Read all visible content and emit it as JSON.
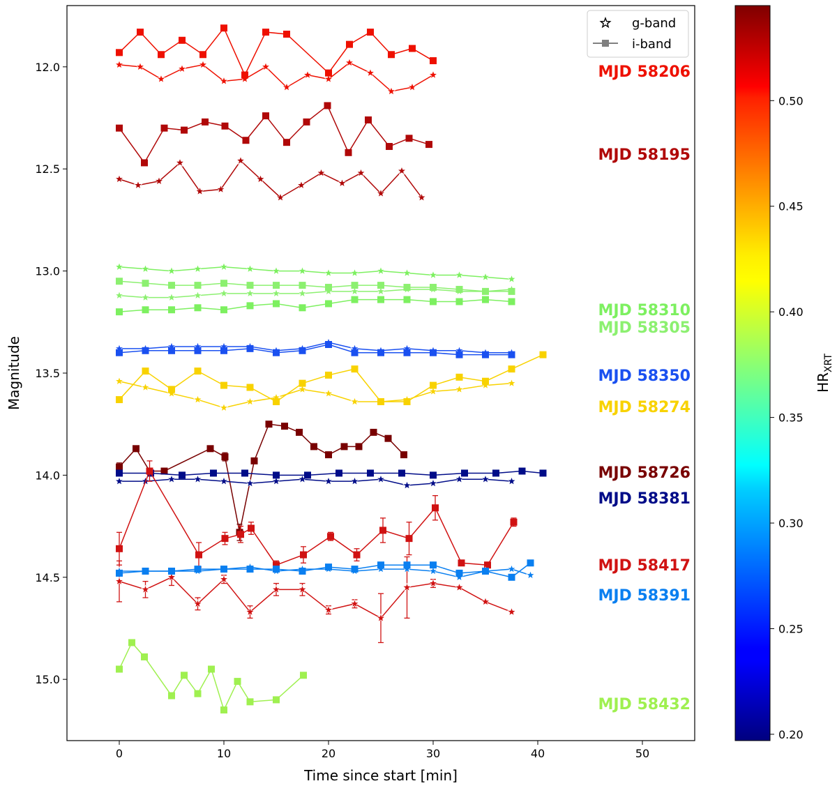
{
  "chart_data": {
    "type": "line",
    "xlabel": "Time since start [min]",
    "ylabel": "Magnitude",
    "xlim": [
      -5,
      55
    ],
    "ylim": [
      15.3,
      11.7
    ],
    "y_inverted": true,
    "xticks": [
      "0",
      "10",
      "20",
      "30",
      "40",
      "50"
    ],
    "yticks": [
      "12.0",
      "12.5",
      "13.0",
      "13.5",
      "14.0",
      "14.5",
      "15.0"
    ],
    "legend": {
      "position": "top-right",
      "entries": [
        {
          "label": "g-band",
          "marker": "star"
        },
        {
          "label": "i-band",
          "marker": "square"
        }
      ]
    },
    "colorbar": {
      "label": "HR",
      "label_sub": "XRT",
      "range": [
        0.197,
        0.545
      ],
      "ticks": [
        "0.20",
        "0.25",
        "0.30",
        "0.35",
        "0.40",
        "0.45",
        "0.50"
      ],
      "colormap": "jet"
    },
    "epochs": [
      {
        "label": "MJD 58206",
        "color": "#ee1000",
        "i_band": {
          "x": [
            0,
            2,
            4,
            6,
            8,
            10,
            12,
            14,
            16,
            20,
            22,
            24,
            26,
            28,
            30
          ],
          "y": [
            11.93,
            11.83,
            11.94,
            11.87,
            11.94,
            11.81,
            12.04,
            11.83,
            11.84,
            12.03,
            11.89,
            11.83,
            11.94,
            11.91,
            11.97
          ]
        },
        "g_band": {
          "x": [
            0,
            2,
            4,
            6,
            8,
            10,
            12,
            14,
            16,
            18,
            20,
            22,
            24,
            26,
            28,
            30
          ],
          "y": [
            11.99,
            12.0,
            12.06,
            12.01,
            11.99,
            12.07,
            12.06,
            12.0,
            12.1,
            12.04,
            12.06,
            11.98,
            12.03,
            12.12,
            12.1,
            12.04
          ]
        }
      },
      {
        "label": "MJD 58195",
        "color": "#b00808",
        "i_band": {
          "x": [
            0,
            2.4,
            4.3,
            6.2,
            8.2,
            10.1,
            12.1,
            14,
            16,
            17.9,
            19.9,
            21.9,
            23.8,
            25.8,
            27.7,
            29.6
          ],
          "y": [
            12.3,
            12.47,
            12.3,
            12.31,
            12.27,
            12.29,
            12.36,
            12.24,
            12.37,
            12.27,
            12.19,
            12.42,
            12.26,
            12.39,
            12.35,
            12.38
          ]
        },
        "g_band": {
          "x": [
            0,
            1.8,
            3.8,
            5.8,
            7.7,
            9.7,
            11.6,
            13.5,
            15.4,
            17.4,
            19.3,
            21.3,
            23.1,
            25,
            27,
            28.9
          ],
          "y": [
            12.55,
            12.58,
            12.56,
            12.47,
            12.61,
            12.6,
            12.46,
            12.55,
            12.64,
            12.58,
            12.52,
            12.57,
            12.52,
            12.62,
            12.51,
            12.64
          ]
        }
      },
      {
        "label": "MJD 58310",
        "color": "#7df060",
        "i_band": {
          "x": [
            0,
            2.5,
            5,
            7.5,
            10,
            12.5,
            15,
            17.5,
            20,
            22.5,
            25,
            27.5,
            30,
            32.5,
            35,
            37.5
          ],
          "y": [
            13.2,
            13.19,
            13.19,
            13.18,
            13.19,
            13.17,
            13.16,
            13.18,
            13.16,
            13.14,
            13.14,
            13.14,
            13.15,
            13.15,
            13.14,
            13.15
          ]
        },
        "g_band": {
          "x": [
            0,
            2.5,
            5,
            7.5,
            10,
            12.5,
            15,
            17.5,
            20,
            22.5,
            25,
            27.5,
            30,
            32.5,
            35,
            37.5
          ],
          "y": [
            12.98,
            12.99,
            13.0,
            12.99,
            12.98,
            12.99,
            13.0,
            13.0,
            13.01,
            13.01,
            13.0,
            13.01,
            13.02,
            13.02,
            13.03,
            13.04
          ]
        }
      },
      {
        "label": "MJD 58305",
        "color": "#8cf070",
        "i_band": {
          "x": [
            0,
            2.5,
            5,
            7.5,
            10,
            12.5,
            15,
            17.5,
            20,
            22.5,
            25,
            27.5,
            30,
            32.5,
            35,
            37.5
          ],
          "y": [
            13.05,
            13.06,
            13.07,
            13.07,
            13.06,
            13.07,
            13.07,
            13.07,
            13.08,
            13.07,
            13.07,
            13.08,
            13.08,
            13.09,
            13.1,
            13.1
          ]
        },
        "g_band": {
          "x": [
            0,
            2.5,
            5,
            7.5,
            10,
            12.5,
            15,
            17.5,
            20,
            22.5,
            25,
            27.5,
            30,
            32.5,
            35,
            37.5
          ],
          "y": [
            13.12,
            13.13,
            13.13,
            13.12,
            13.11,
            13.11,
            13.11,
            13.11,
            13.1,
            13.1,
            13.1,
            13.09,
            13.09,
            13.1,
            13.1,
            13.09
          ]
        }
      },
      {
        "label": "MJD 58350",
        "color": "#1a50f0",
        "i_band": {
          "x": [
            0,
            2.5,
            5,
            7.5,
            10,
            12.5,
            15,
            17.5,
            20,
            22.5,
            25,
            27.5,
            30,
            32.5,
            35,
            37.5
          ],
          "y": [
            13.4,
            13.39,
            13.39,
            13.39,
            13.39,
            13.38,
            13.4,
            13.39,
            13.36,
            13.4,
            13.4,
            13.4,
            13.4,
            13.41,
            13.41,
            13.41
          ]
        },
        "g_band": {
          "x": [
            0,
            2.5,
            5,
            7.5,
            10,
            12.5,
            15,
            17.5,
            20,
            22.5,
            25,
            27.5,
            30,
            32.5,
            35,
            37.5
          ],
          "y": [
            13.38,
            13.38,
            13.37,
            13.37,
            13.37,
            13.37,
            13.39,
            13.38,
            13.35,
            13.38,
            13.39,
            13.38,
            13.39,
            13.39,
            13.4,
            13.4
          ]
        }
      },
      {
        "label": "MJD 58274",
        "color": "#f8d200",
        "i_band": {
          "x": [
            0,
            2.5,
            5,
            7.5,
            10,
            12.5,
            15,
            17.5,
            20,
            22.5,
            25,
            27.5,
            30,
            32.5,
            35,
            37.5,
            40.5
          ],
          "y": [
            13.63,
            13.49,
            13.58,
            13.49,
            13.56,
            13.57,
            13.64,
            13.55,
            13.51,
            13.48,
            13.64,
            13.64,
            13.56,
            13.52,
            13.54,
            13.48,
            13.41
          ]
        },
        "g_band": {
          "x": [
            0,
            2.5,
            5,
            7.5,
            10,
            12.5,
            15,
            17.5,
            20,
            22.5,
            25,
            27.5,
            30,
            32.5,
            35,
            37.5
          ],
          "y": [
            13.54,
            13.57,
            13.6,
            13.63,
            13.67,
            13.64,
            13.62,
            13.58,
            13.6,
            13.64,
            13.64,
            13.63,
            13.59,
            13.58,
            13.56,
            13.55
          ]
        }
      },
      {
        "label": "MJD 58726",
        "color": "#780000",
        "i_band": {
          "x": [
            0,
            1.6,
            2.9,
            4.3,
            8.7,
            10.1,
            11.5,
            12.9,
            14.3,
            15.8,
            17.2,
            18.6,
            20,
            21.5,
            22.9,
            24.3,
            25.7,
            27.2
          ],
          "y": [
            13.96,
            13.87,
            13.98,
            13.98,
            13.87,
            13.91,
            14.28,
            13.93,
            13.75,
            13.76,
            13.79,
            13.86,
            13.9,
            13.86,
            13.86,
            13.79,
            13.82,
            13.9
          ],
          "err": [
            0.02,
            0.01,
            0.01,
            0.01,
            0.01,
            0.02,
            0.04,
            0.01,
            0.01,
            0.01,
            0.01,
            0.01,
            0.01,
            0.01,
            0.01,
            0.01,
            0.01,
            0.01
          ]
        }
      },
      {
        "label": "MJD 58381",
        "color": "#000c88",
        "i_band": {
          "x": [
            0,
            3,
            6,
            9,
            12,
            15,
            18,
            21,
            24,
            27,
            30,
            33,
            36,
            38.5,
            40.5
          ],
          "y": [
            13.99,
            13.99,
            14.0,
            13.99,
            13.99,
            14.0,
            14.0,
            13.99,
            13.99,
            13.99,
            14.0,
            13.99,
            13.99,
            13.98,
            13.99
          ]
        },
        "g_band": {
          "x": [
            0,
            2.5,
            5,
            7.5,
            10,
            12.5,
            15,
            17.5,
            20,
            22.5,
            25,
            27.5,
            30,
            32.5,
            35,
            37.5
          ],
          "y": [
            14.03,
            14.03,
            14.02,
            14.02,
            14.03,
            14.04,
            14.03,
            14.02,
            14.03,
            14.03,
            14.02,
            14.05,
            14.04,
            14.02,
            14.02,
            14.03
          ]
        }
      },
      {
        "label": "MJD 58417",
        "color": "#d01212",
        "i_band": {
          "x": [
            0,
            2.9,
            7.6,
            10.1,
            11.6,
            12.6,
            15,
            17.6,
            20.2,
            22.7,
            25.2,
            27.7,
            30.2,
            32.7,
            35.2,
            37.7
          ],
          "y": [
            14.36,
            13.98,
            14.39,
            14.31,
            14.29,
            14.26,
            14.44,
            14.39,
            14.3,
            14.39,
            14.27,
            14.31,
            14.16,
            14.43,
            14.44,
            14.23
          ],
          "err": [
            0.08,
            0.05,
            0.06,
            0.03,
            0.04,
            0.03,
            0.02,
            0.04,
            0.02,
            0.03,
            0.06,
            0.08,
            0.06,
            0.01,
            0.01,
            0.02
          ]
        },
        "g_band": {
          "x": [
            0,
            2.5,
            5,
            7.5,
            10,
            12.5,
            15,
            17.5,
            20,
            22.5,
            25,
            27.5,
            30,
            32.5,
            35,
            37.5
          ],
          "y": [
            14.52,
            14.56,
            14.5,
            14.63,
            14.51,
            14.67,
            14.56,
            14.56,
            14.66,
            14.63,
            14.7,
            14.55,
            14.53,
            14.55,
            14.62,
            14.67
          ],
          "err": [
            0.1,
            0.04,
            0.04,
            0.03,
            0.02,
            0.03,
            0.03,
            0.03,
            0.02,
            0.02,
            0.12,
            0.15,
            0.02,
            0.01,
            0.01,
            0.01
          ]
        }
      },
      {
        "label": "MJD 58391",
        "color": "#0a7ff0",
        "i_band": {
          "x": [
            0,
            2.5,
            5,
            7.5,
            10,
            12.5,
            15,
            17.5,
            20,
            22.5,
            25,
            27.5,
            30,
            32.5,
            35,
            37.5,
            39.3
          ],
          "y": [
            14.48,
            14.47,
            14.47,
            14.46,
            14.46,
            14.46,
            14.46,
            14.47,
            14.45,
            14.46,
            14.44,
            14.44,
            14.44,
            14.48,
            14.47,
            14.5,
            14.43
          ]
        },
        "g_band": {
          "x": [
            0,
            2.5,
            5,
            7.5,
            10,
            12.5,
            15,
            17.5,
            20,
            22.5,
            25,
            27.5,
            30,
            32.5,
            35,
            37.5,
            39.3
          ],
          "y": [
            14.47,
            14.47,
            14.47,
            14.47,
            14.46,
            14.45,
            14.47,
            14.46,
            14.46,
            14.47,
            14.46,
            14.46,
            14.47,
            14.5,
            14.47,
            14.46,
            14.49
          ]
        }
      },
      {
        "label": "MJD 58432",
        "color": "#9ff050",
        "i_band": {
          "x": [
            0,
            1.2,
            2.4,
            5,
            6.2,
            7.5,
            8.8,
            10,
            11.3,
            12.5,
            15,
            17.6
          ],
          "y": [
            14.95,
            14.82,
            14.89,
            15.08,
            14.98,
            15.07,
            14.95,
            15.15,
            15.01,
            15.11,
            15.1,
            14.98
          ]
        }
      }
    ]
  }
}
